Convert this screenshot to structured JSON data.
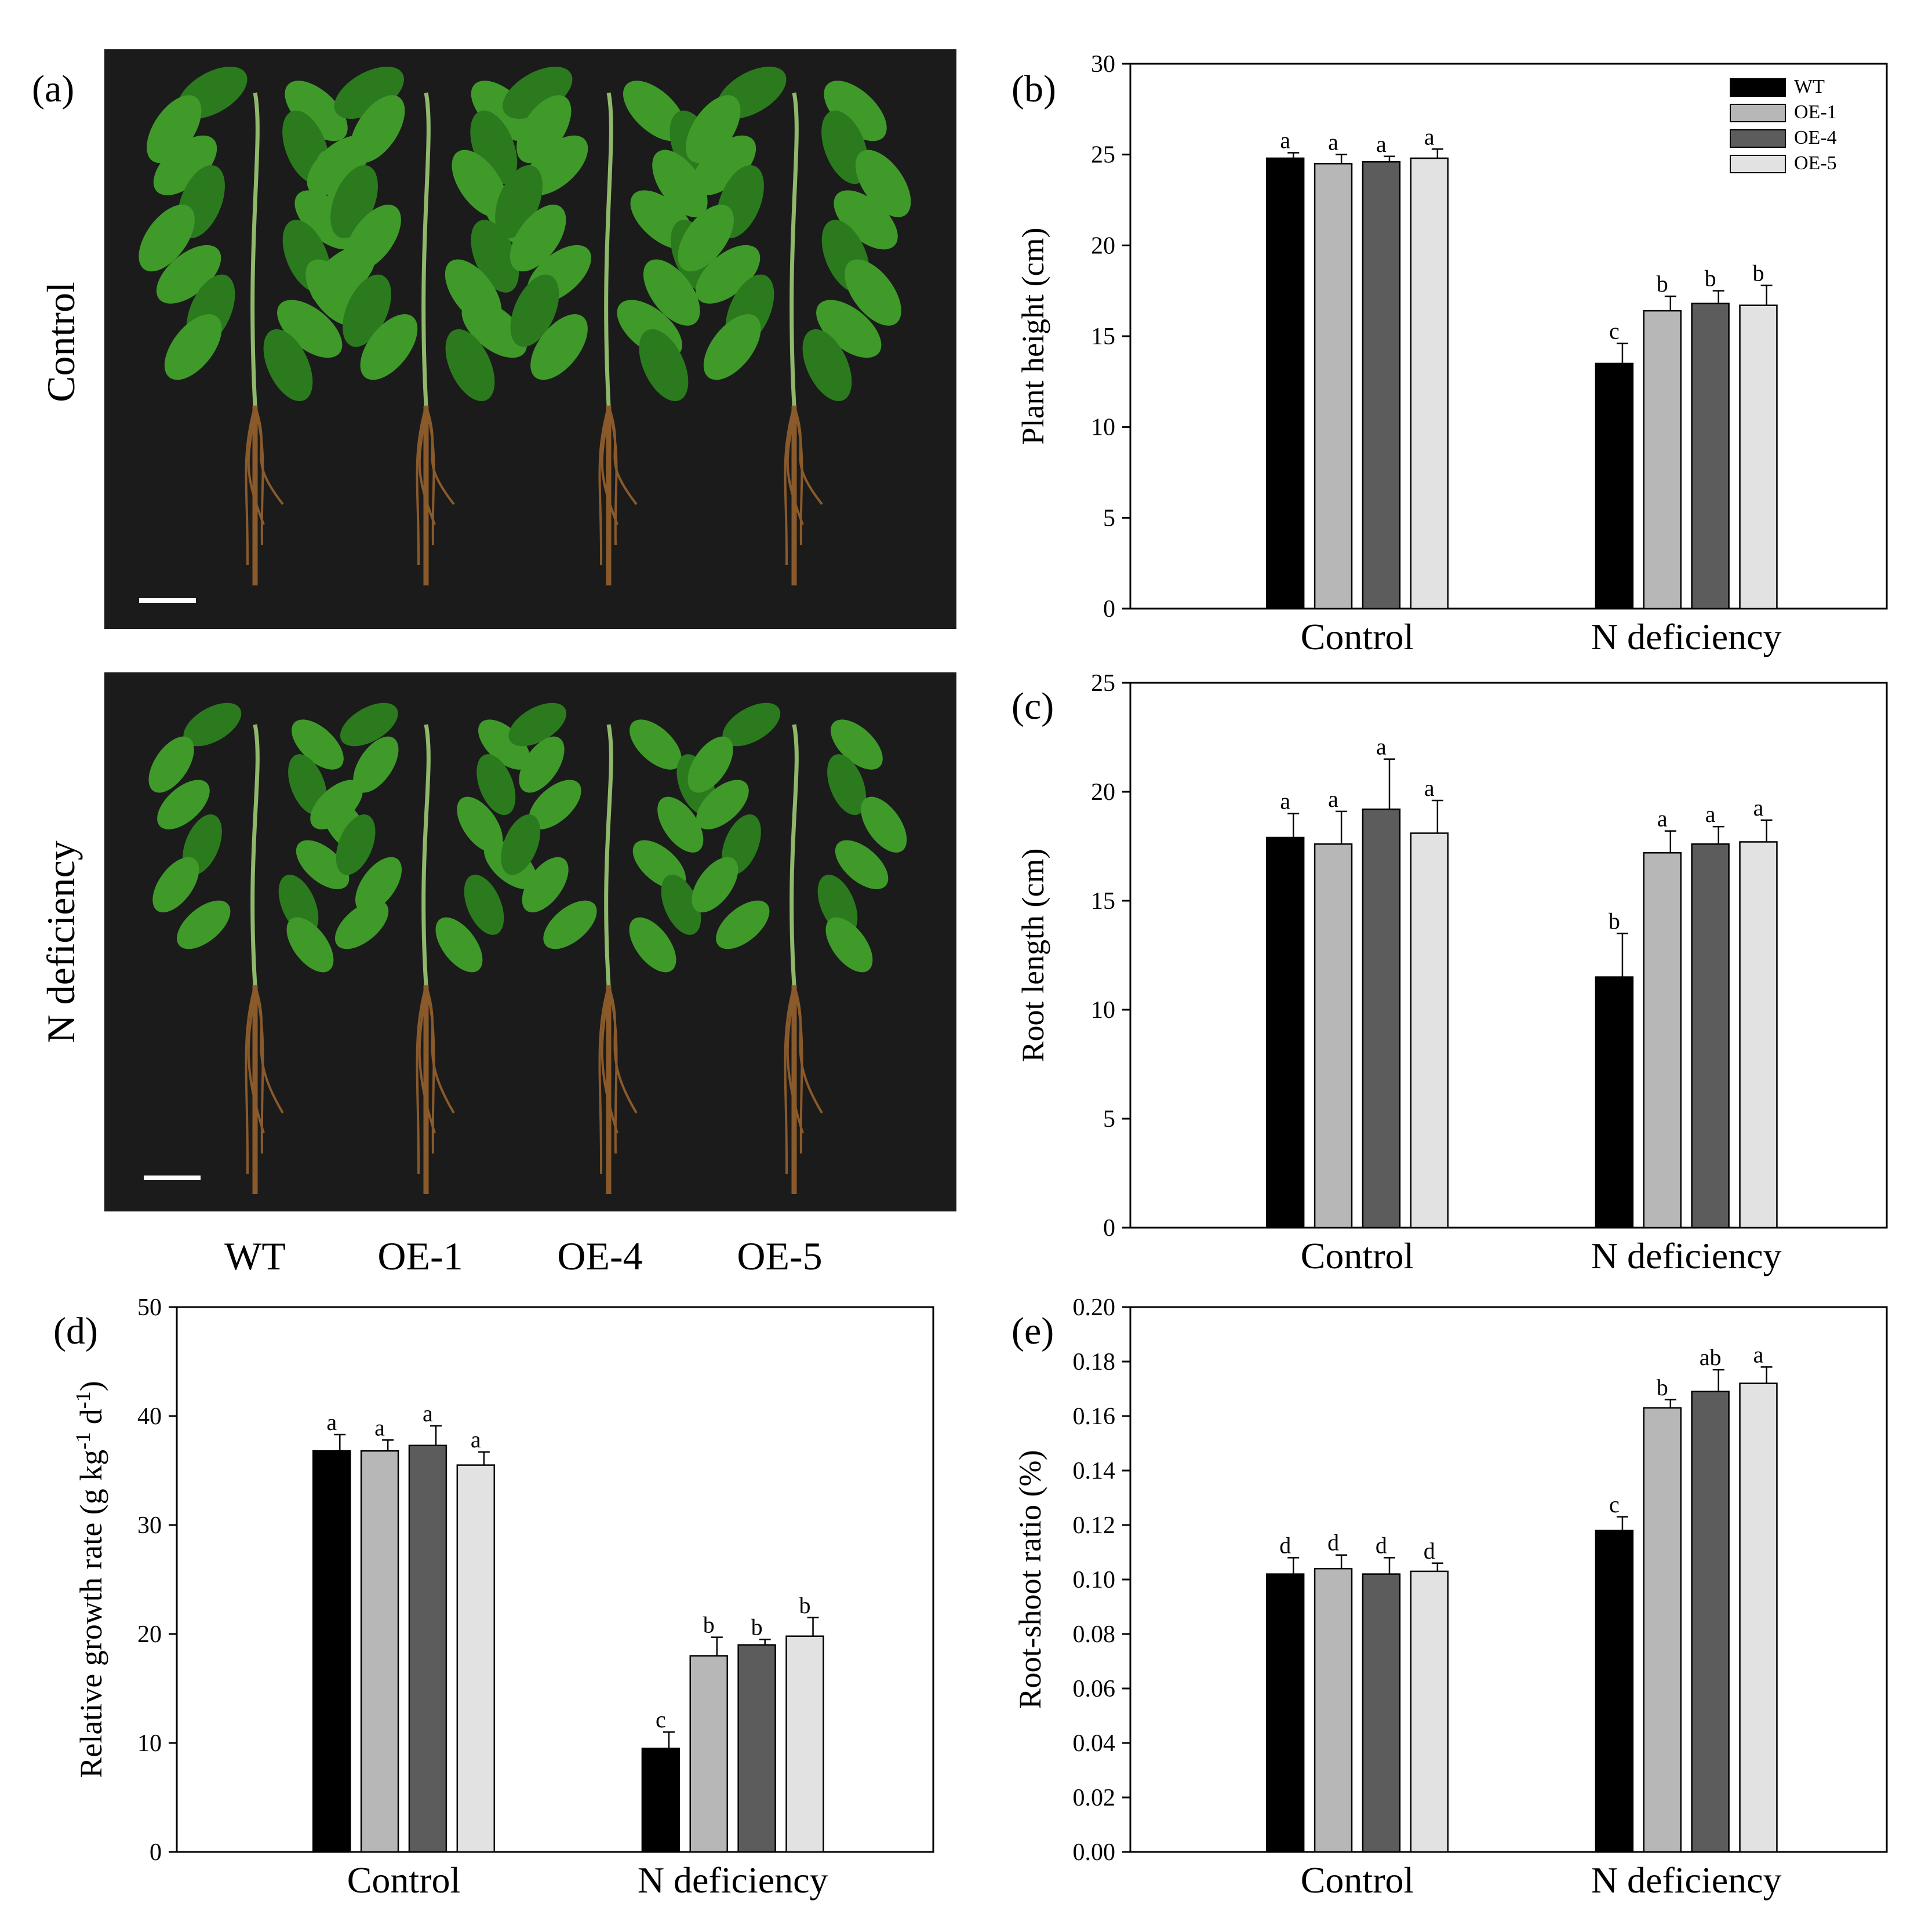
{
  "photo_panel": {
    "panel_label": "(a)",
    "rows": [
      {
        "label": "Control"
      },
      {
        "label": "N deficiency"
      }
    ],
    "genotypes": [
      "WT",
      "OE-1",
      "OE-4",
      "OE-5"
    ],
    "colors": {
      "background": "#1b1b1b",
      "leaf": "#3f9a2a",
      "leaf_dark": "#2b7a1e",
      "stem": "#8fb86a",
      "root": "#8a5a2b",
      "scale_bar": "#ffffff"
    }
  },
  "legend": {
    "entries": [
      {
        "name": "WT",
        "color": "#000000"
      },
      {
        "name": "OE-1",
        "color": "#b7b7b7"
      },
      {
        "name": "OE-4",
        "color": "#5c5c5c"
      },
      {
        "name": "OE-5",
        "color": "#e2e2e2"
      }
    ],
    "placement": "top-right"
  },
  "chart_data": [
    {
      "panel_label": "(b)",
      "type": "bar",
      "categories": [
        "Control",
        "N deficiency"
      ],
      "ylabel": "Plant height (cm)",
      "xlabel": "",
      "ylim": [
        0,
        30
      ],
      "yticks": [
        0,
        5,
        10,
        15,
        20,
        25,
        30
      ],
      "tick_labels": [
        "0",
        "5",
        "10",
        "15",
        "20",
        "25",
        "30"
      ],
      "legend_shown": true,
      "grid": false,
      "series": [
        {
          "name": "WT",
          "values": [
            24.8,
            13.5
          ],
          "errors": [
            0.3,
            1.1
          ],
          "letters": [
            "a",
            "c"
          ]
        },
        {
          "name": "OE-1",
          "values": [
            24.5,
            16.4
          ],
          "errors": [
            0.5,
            0.8
          ],
          "letters": [
            "a",
            "b"
          ]
        },
        {
          "name": "OE-4",
          "values": [
            24.6,
            16.8
          ],
          "errors": [
            0.3,
            0.7
          ],
          "letters": [
            "a",
            "b"
          ]
        },
        {
          "name": "OE-5",
          "values": [
            24.8,
            16.7
          ],
          "errors": [
            0.5,
            1.1
          ],
          "letters": [
            "a",
            "b"
          ]
        }
      ]
    },
    {
      "panel_label": "(c)",
      "type": "bar",
      "categories": [
        "Control",
        "N deficiency"
      ],
      "ylabel": "Root length (cm)",
      "xlabel": "",
      "ylim": [
        0,
        25
      ],
      "yticks": [
        0,
        5,
        10,
        15,
        20,
        25
      ],
      "tick_labels": [
        "0",
        "5",
        "10",
        "15",
        "20",
        "25"
      ],
      "legend_shown": false,
      "grid": false,
      "series": [
        {
          "name": "WT",
          "values": [
            17.9,
            11.5
          ],
          "errors": [
            1.1,
            2.0
          ],
          "letters": [
            "a",
            "b"
          ]
        },
        {
          "name": "OE-1",
          "values": [
            17.6,
            17.2
          ],
          "errors": [
            1.5,
            1.0
          ],
          "letters": [
            "a",
            "a"
          ]
        },
        {
          "name": "OE-4",
          "values": [
            19.2,
            17.6
          ],
          "errors": [
            2.3,
            0.8
          ],
          "letters": [
            "a",
            "a"
          ]
        },
        {
          "name": "OE-5",
          "values": [
            18.1,
            17.7
          ],
          "errors": [
            1.5,
            1.0
          ],
          "letters": [
            "a",
            "a"
          ]
        }
      ]
    },
    {
      "panel_label": "(d)",
      "type": "bar",
      "categories": [
        "Control",
        "N deficiency"
      ],
      "ylabel_parts": [
        "Relative growth rate (g kg",
        "-1",
        " d",
        "-1",
        ")"
      ],
      "xlabel": "",
      "ylim": [
        0,
        50
      ],
      "yticks": [
        0,
        10,
        20,
        30,
        40,
        50
      ],
      "tick_labels": [
        "0",
        "10",
        "20",
        "30",
        "40",
        "50"
      ],
      "legend_shown": false,
      "grid": false,
      "series": [
        {
          "name": "WT",
          "values": [
            36.8,
            9.5
          ],
          "errors": [
            1.5,
            1.5
          ],
          "letters": [
            "a",
            "c"
          ]
        },
        {
          "name": "OE-1",
          "values": [
            36.8,
            18.0
          ],
          "errors": [
            1.0,
            1.7
          ],
          "letters": [
            "a",
            "b"
          ]
        },
        {
          "name": "OE-4",
          "values": [
            37.3,
            19.0
          ],
          "errors": [
            1.8,
            0.5
          ],
          "letters": [
            "a",
            "b"
          ]
        },
        {
          "name": "OE-5",
          "values": [
            35.5,
            19.8
          ],
          "errors": [
            1.2,
            1.7
          ],
          "letters": [
            "a",
            "b"
          ]
        }
      ]
    },
    {
      "panel_label": "(e)",
      "type": "bar",
      "categories": [
        "Control",
        "N deficiency"
      ],
      "ylabel": "Root-shoot ratio (%)",
      "xlabel": "",
      "ylim": [
        0,
        0.2
      ],
      "yticks": [
        0,
        0.02,
        0.04,
        0.06,
        0.08,
        0.1,
        0.12,
        0.14,
        0.16,
        0.18,
        0.2
      ],
      "tick_labels": [
        "0.00",
        "0.02",
        "0.04",
        "0.06",
        "0.08",
        "0.10",
        "0.12",
        "0.14",
        "0.16",
        "0.18",
        "0.20"
      ],
      "legend_shown": false,
      "grid": false,
      "series": [
        {
          "name": "WT",
          "values": [
            0.102,
            0.118
          ],
          "errors": [
            0.006,
            0.005
          ],
          "letters": [
            "d",
            "c"
          ]
        },
        {
          "name": "OE-1",
          "values": [
            0.104,
            0.163
          ],
          "errors": [
            0.005,
            0.003
          ],
          "letters": [
            "d",
            "b"
          ]
        },
        {
          "name": "OE-4",
          "values": [
            0.102,
            0.169
          ],
          "errors": [
            0.006,
            0.008
          ],
          "letters": [
            "d",
            "ab"
          ]
        },
        {
          "name": "OE-5",
          "values": [
            0.103,
            0.172
          ],
          "errors": [
            0.003,
            0.006
          ],
          "letters": [
            "d",
            "a"
          ]
        }
      ]
    }
  ]
}
